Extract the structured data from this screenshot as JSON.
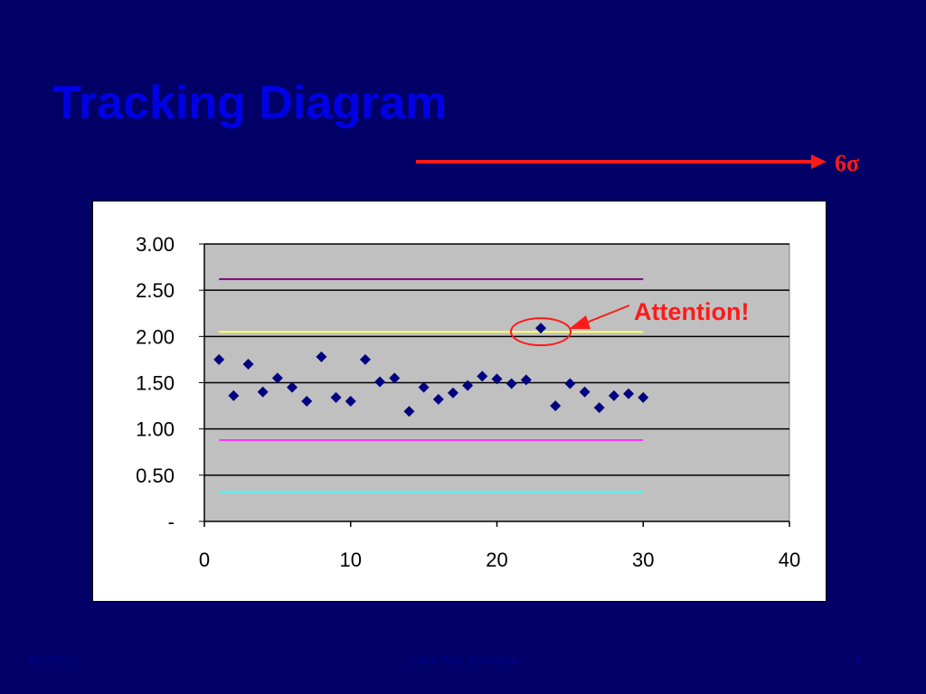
{
  "slide": {
    "title": "Tracking Diagram",
    "sigma_label": "6σ",
    "footer_date": "8/1/2014",
    "footer_center": "Case One Example",
    "footer_page": "4"
  },
  "colors": {
    "background": "#000066",
    "title": "#0000e6",
    "arrow": "#ff1a1a",
    "plot_area": "#c0c0c0",
    "marker": "#000080"
  },
  "chart_data": {
    "type": "scatter",
    "xlim": [
      0,
      40
    ],
    "ylim": [
      0,
      3
    ],
    "x_ticks": [
      0,
      10,
      20,
      30,
      40
    ],
    "x_tick_labels": [
      "0",
      "10",
      "20",
      "30",
      "40"
    ],
    "y_ticks": [
      0,
      0.5,
      1,
      1.5,
      2,
      2.5,
      3
    ],
    "y_tick_labels": [
      "-",
      "0.50",
      "1.00",
      "1.50",
      "2.00",
      "2.50",
      "3.00"
    ],
    "grid": "horizontal major gridlines",
    "marker": "diamond",
    "series": [
      {
        "x": [
          1,
          2,
          3,
          4,
          5,
          6,
          7,
          8,
          9,
          10,
          11,
          12,
          13,
          14,
          15,
          16,
          17,
          18,
          19,
          20,
          21,
          22,
          23,
          24,
          25,
          26,
          27,
          28,
          29,
          30
        ],
        "y": [
          1.75,
          1.36,
          1.7,
          1.4,
          1.55,
          1.45,
          1.3,
          1.78,
          1.34,
          1.3,
          1.75,
          1.51,
          1.55,
          1.19,
          1.45,
          1.32,
          1.39,
          1.47,
          1.57,
          1.54,
          1.49,
          1.53,
          2.09,
          1.25,
          1.49,
          1.4,
          1.23,
          1.36,
          1.38,
          1.34
        ]
      }
    ],
    "reference_lines": [
      {
        "y": 2.62,
        "x_range": [
          1,
          30
        ],
        "color": "#800080"
      },
      {
        "y": 2.05,
        "x_range": [
          1,
          30
        ],
        "color": "#ffff66"
      },
      {
        "y": 0.88,
        "x_range": [
          1,
          30
        ],
        "color": "#ff33ff"
      },
      {
        "y": 0.32,
        "x_range": [
          1,
          30
        ],
        "color": "#33ffff"
      }
    ],
    "annotation": {
      "text": "Attention!",
      "target_x": 23,
      "target_y": 2.09,
      "color": "#ff1a1a"
    }
  }
}
